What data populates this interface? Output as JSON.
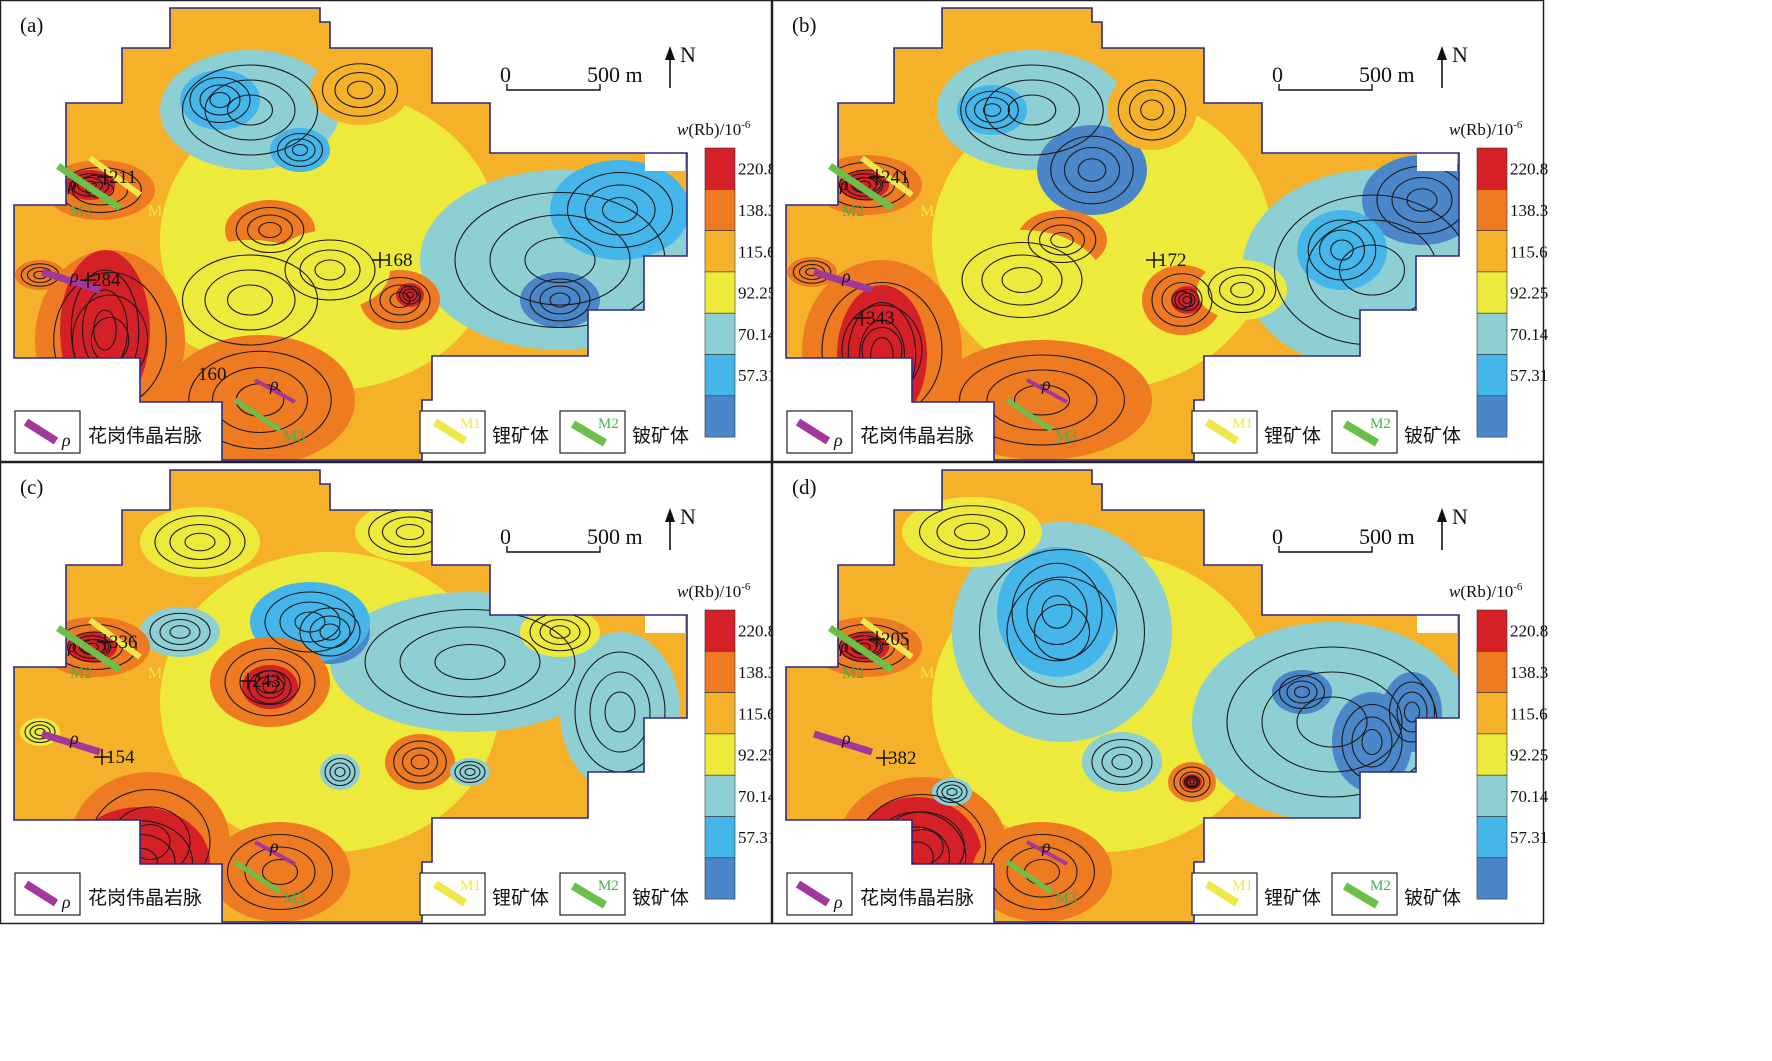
{
  "panels": [
    {
      "id": "a",
      "label": "(a)",
      "anomalies": [
        "211",
        "284",
        "168",
        "160"
      ]
    },
    {
      "id": "b",
      "label": "(b)",
      "anomalies": [
        "241",
        "343",
        "172"
      ]
    },
    {
      "id": "c",
      "label": "(c)",
      "anomalies": [
        "336",
        "154",
        "243"
      ]
    },
    {
      "id": "d",
      "label": "(d)",
      "anomalies": [
        "205",
        "382"
      ]
    }
  ],
  "scale_bar": {
    "start": "0",
    "end": "500 m",
    "north": "N"
  },
  "legend": {
    "title_var": "w",
    "title_rest": "(Rb)/10",
    "title_exp": "-6",
    "breaks": [
      "220.8",
      "138.3",
      "115.6",
      "92.25",
      "70.14",
      "57.31"
    ],
    "classes": [
      {
        "color": "#d42026"
      },
      {
        "color": "#ee7a22"
      },
      {
        "color": "#f6b12a"
      },
      {
        "color": "#eeea3c"
      },
      {
        "color": "#8ecfd4"
      },
      {
        "color": "#45b6ea"
      },
      {
        "color": "#4a86c8"
      }
    ]
  },
  "vein_symbol": "ρ",
  "ore_bodies": {
    "m1": "M1",
    "m2": "M2",
    "m3": "M3"
  },
  "key": {
    "pegmatite": "花岗伟晶岩脉",
    "lithium": "锂矿体",
    "beryllium": "铍矿体"
  },
  "colors": {
    "pegmatite": "#a2399a",
    "m1": "#f0e84a",
    "m2": "#6bc04a",
    "m3_text": "#48b04a",
    "outline": "#2a2a8a"
  }
}
